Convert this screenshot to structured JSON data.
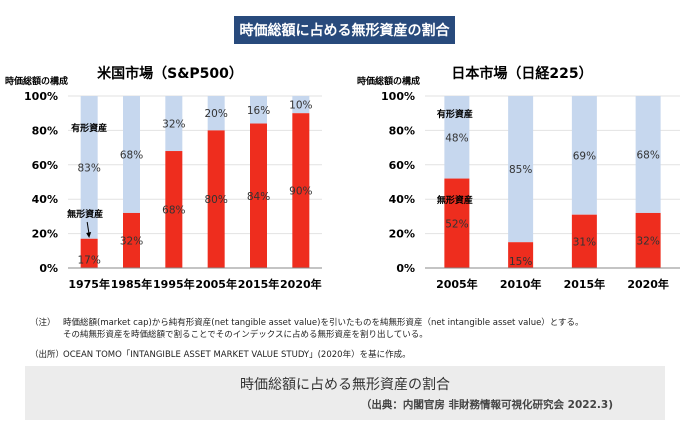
{
  "header": {
    "title": "時価総額に占める無形資産の割合"
  },
  "colors": {
    "intangible": "#ee2d1e",
    "tangible": "#c6d7ee",
    "title_bg": "#284a7c"
  },
  "chart_data": [
    {
      "type": "bar",
      "stacked": true,
      "title": "米国市場（S&P500）",
      "ylabel": "時価総額の構成",
      "ylim": [
        0,
        100
      ],
      "yticks": [
        "0%",
        "20%",
        "40%",
        "60%",
        "80%",
        "100%"
      ],
      "grid": true,
      "categories": [
        "1975年",
        "1985年",
        "1995年",
        "2005年",
        "2015年",
        "2020年"
      ],
      "series": [
        {
          "name": "無形資産",
          "values": [
            17,
            32,
            68,
            80,
            84,
            90
          ],
          "labels": [
            "17%",
            "32%",
            "68%",
            "80%",
            "84%",
            "90%"
          ]
        },
        {
          "name": "有形資産",
          "values": [
            83,
            68,
            32,
            20,
            16,
            10
          ],
          "labels": [
            "83%",
            "68%",
            "32%",
            "20%",
            "16%",
            "10%"
          ]
        }
      ]
    },
    {
      "type": "bar",
      "stacked": true,
      "title": "日本市場（日経225）",
      "ylabel": "時価総額の構成",
      "ylim": [
        0,
        100
      ],
      "yticks": [
        "0%",
        "20%",
        "40%",
        "60%",
        "80%",
        "100%"
      ],
      "grid": true,
      "categories": [
        "2005年",
        "2010年",
        "2015年",
        "2020年"
      ],
      "series": [
        {
          "name": "無形資産",
          "values": [
            52,
            15,
            31,
            32
          ],
          "labels": [
            "52%",
            "15%",
            "31%",
            "32%"
          ]
        },
        {
          "name": "有形資産",
          "values": [
            48,
            85,
            69,
            68
          ],
          "labels": [
            "48%",
            "85%",
            "69%",
            "68%"
          ]
        }
      ]
    }
  ],
  "notes": {
    "note_label": "（注）",
    "note_line1": "時価総額(market cap)から純有形資産(net tangible asset value)を引いたものを純無形資産（net intangible asset value）とする。",
    "note_line2": "その純無形資産を時価総額で割ることでそのインデックスに占める無形資産を割り出している。",
    "source_label": "（出所）",
    "source_text": "OCEAN TOMO「INTANGIBLE ASSET MARKET VALUE STUDY」(2020年）を基に作成。"
  },
  "footer": {
    "title": "時価総額に占める無形資産の割合",
    "source": "（出典：内閣官房 非財務情報可視化研究会 2022.3)"
  }
}
